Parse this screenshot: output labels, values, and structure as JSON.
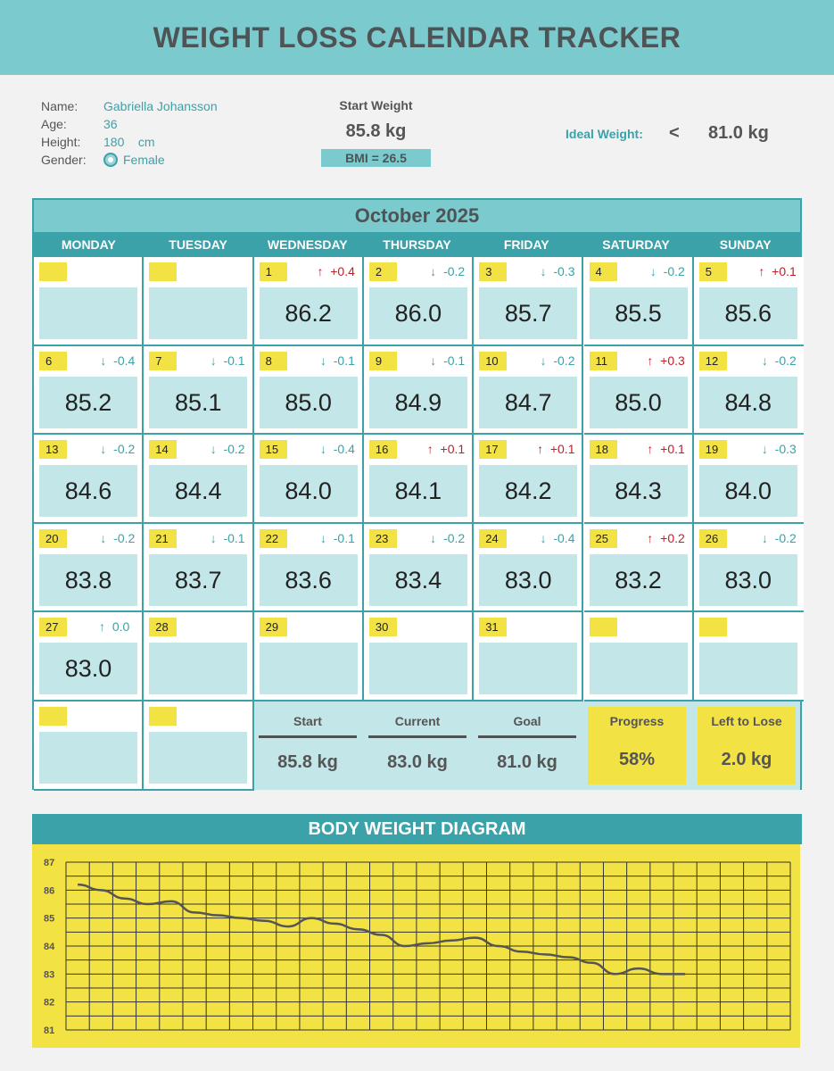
{
  "title": "WEIGHT LOSS CALENDAR TRACKER",
  "profile": {
    "name_label": "Name:",
    "name": "Gabriella Johansson",
    "age_label": "Age:",
    "age": "36",
    "height_label": "Height:",
    "height": "180",
    "height_unit": "cm",
    "gender_label": "Gender:",
    "gender": "Female"
  },
  "start": {
    "label": "Start Weight",
    "value": "85.8 kg",
    "bmi": "BMI = 26.5"
  },
  "ideal": {
    "label": "Ideal Weight:",
    "symbol": "<",
    "value": "81.0 kg"
  },
  "calendar": {
    "month": "October 2025",
    "weekdays": [
      "MONDAY",
      "TUESDAY",
      "WEDNESDAY",
      "THURSDAY",
      "FRIDAY",
      "SATURDAY",
      "SUNDAY"
    ],
    "cells": [
      {
        "day": "",
        "change": "",
        "dir": "",
        "weight": ""
      },
      {
        "day": "",
        "change": "",
        "dir": "",
        "weight": ""
      },
      {
        "day": "1",
        "change": "+0.4",
        "dir": "up",
        "weight": "86.2"
      },
      {
        "day": "2",
        "change": "-0.2",
        "dir": "down",
        "weight": "86.0"
      },
      {
        "day": "3",
        "change": "-0.3",
        "dir": "down",
        "weight": "85.7"
      },
      {
        "day": "4",
        "change": "-0.2",
        "dir": "down",
        "weight": "85.5"
      },
      {
        "day": "5",
        "change": "+0.1",
        "dir": "up",
        "weight": "85.6"
      },
      {
        "day": "6",
        "change": "-0.4",
        "dir": "down",
        "weight": "85.2"
      },
      {
        "day": "7",
        "change": "-0.1",
        "dir": "down",
        "weight": "85.1"
      },
      {
        "day": "8",
        "change": "-0.1",
        "dir": "down",
        "weight": "85.0"
      },
      {
        "day": "9",
        "change": "-0.1",
        "dir": "down",
        "weight": "84.9"
      },
      {
        "day": "10",
        "change": "-0.2",
        "dir": "down",
        "weight": "84.7"
      },
      {
        "day": "11",
        "change": "+0.3",
        "dir": "up",
        "weight": "85.0"
      },
      {
        "day": "12",
        "change": "-0.2",
        "dir": "down",
        "weight": "84.8"
      },
      {
        "day": "13",
        "change": "-0.2",
        "dir": "down",
        "weight": "84.6"
      },
      {
        "day": "14",
        "change": "-0.2",
        "dir": "down",
        "weight": "84.4"
      },
      {
        "day": "15",
        "change": "-0.4",
        "dir": "down",
        "weight": "84.0"
      },
      {
        "day": "16",
        "change": "+0.1",
        "dir": "up",
        "weight": "84.1"
      },
      {
        "day": "17",
        "change": "+0.1",
        "dir": "up",
        "weight": "84.2"
      },
      {
        "day": "18",
        "change": "+0.1",
        "dir": "up",
        "weight": "84.3"
      },
      {
        "day": "19",
        "change": "-0.3",
        "dir": "down",
        "weight": "84.0"
      },
      {
        "day": "20",
        "change": "-0.2",
        "dir": "down",
        "weight": "83.8"
      },
      {
        "day": "21",
        "change": "-0.1",
        "dir": "down",
        "weight": "83.7"
      },
      {
        "day": "22",
        "change": "-0.1",
        "dir": "down",
        "weight": "83.6"
      },
      {
        "day": "23",
        "change": "-0.2",
        "dir": "down",
        "weight": "83.4"
      },
      {
        "day": "24",
        "change": "-0.4",
        "dir": "down",
        "weight": "83.0"
      },
      {
        "day": "25",
        "change": "+0.2",
        "dir": "up",
        "weight": "83.2"
      },
      {
        "day": "26",
        "change": "-0.2",
        "dir": "down",
        "weight": "83.0"
      },
      {
        "day": "27",
        "change": "0.0",
        "dir": "up",
        "weight": "83.0"
      },
      {
        "day": "28",
        "change": "",
        "dir": "",
        "weight": ""
      },
      {
        "day": "29",
        "change": "",
        "dir": "",
        "weight": ""
      },
      {
        "day": "30",
        "change": "",
        "dir": "",
        "weight": ""
      },
      {
        "day": "31",
        "change": "",
        "dir": "",
        "weight": ""
      },
      {
        "day": "",
        "change": "",
        "dir": "",
        "weight": ""
      },
      {
        "day": "",
        "change": "",
        "dir": "",
        "weight": ""
      },
      {
        "day": "",
        "change": "",
        "dir": "",
        "weight": ""
      },
      {
        "day": "",
        "change": "",
        "dir": "",
        "weight": ""
      }
    ],
    "arrows": {
      "up": "↑",
      "down": "↓"
    }
  },
  "summary": {
    "start_label": "Start",
    "start_value": "85.8 kg",
    "current_label": "Current",
    "current_value": "83.0 kg",
    "goal_label": "Goal",
    "goal_value": "81.0 kg",
    "progress_label": "Progress",
    "progress_value": "58%",
    "left_label": "Left to Lose",
    "left_value": "2.0 kg"
  },
  "chart_data": {
    "type": "line",
    "title": "BODY WEIGHT DIAGRAM",
    "xlabel": "",
    "ylabel": "",
    "x": [
      1,
      2,
      3,
      4,
      5,
      6,
      7,
      8,
      9,
      10,
      11,
      12,
      13,
      14,
      15,
      16,
      17,
      18,
      19,
      20,
      21,
      22,
      23,
      24,
      25,
      26,
      27
    ],
    "values": [
      86.2,
      86.0,
      85.7,
      85.5,
      85.6,
      85.2,
      85.1,
      85.0,
      84.9,
      84.7,
      85.0,
      84.8,
      84.6,
      84.4,
      84.0,
      84.1,
      84.2,
      84.3,
      84.0,
      83.8,
      83.7,
      83.6,
      83.4,
      83.0,
      83.2,
      83.0,
      83.0
    ],
    "yticks": [
      87,
      86,
      85,
      84,
      83,
      82,
      81
    ],
    "ylim": [
      81,
      87
    ],
    "x_columns": 31,
    "grid": true,
    "colors": {
      "line": "#555555",
      "background": "#f3e243",
      "grid": "#333333"
    }
  }
}
